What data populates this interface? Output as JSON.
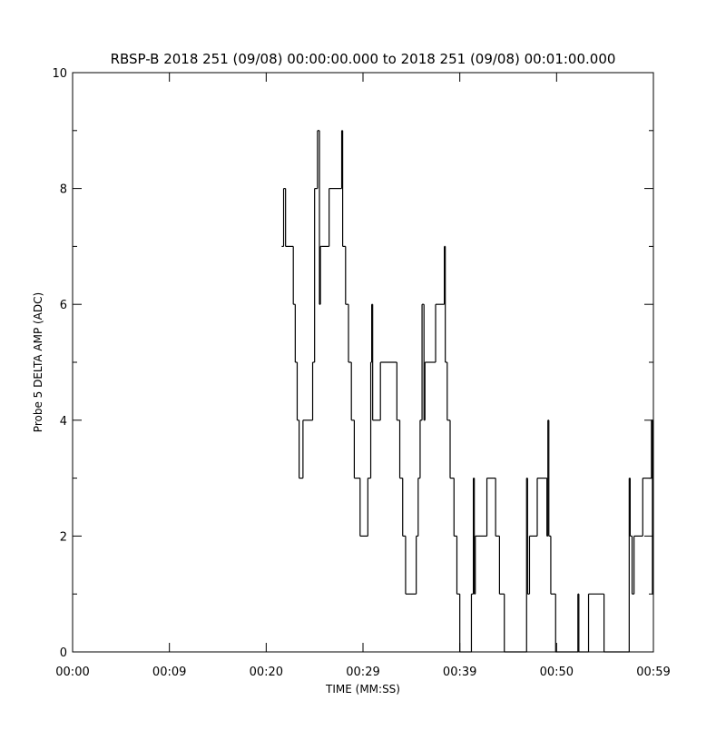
{
  "chart_data": {
    "type": "line",
    "title": "RBSP-B 2018 251 (09/08) 00:00:00.000 to 2018 251 (09/08) 00:01:00.000",
    "x_label": "TIME (MM:SS)",
    "y_label": "Probe 5 DELTA AMP (ADC)",
    "drawstyle": "steps-post",
    "xlim": [
      0,
      60
    ],
    "xticks": [
      {
        "value": 0,
        "label": "00:00"
      },
      {
        "value": 10,
        "label": "00:09"
      },
      {
        "value": 20,
        "label": "00:20"
      },
      {
        "value": 30,
        "label": "00:29"
      },
      {
        "value": 40,
        "label": "00:39"
      },
      {
        "value": 50,
        "label": "00:50"
      },
      {
        "value": 60,
        "label": "00:59"
      }
    ],
    "ylim": [
      0,
      10
    ],
    "yticks": [
      0,
      2,
      4,
      6,
      8,
      10
    ],
    "series": [
      {
        "color": "#000000",
        "x": [
          21.6,
          21.8,
          22.0,
          22.8,
          23.0,
          23.2,
          23.4,
          23.8,
          24.8,
          25.0,
          25.3,
          25.5,
          25.6,
          25.7,
          26.5,
          27.8,
          27.9,
          28.2,
          28.5,
          28.8,
          29.1,
          29.7,
          30.5,
          30.8,
          30.9,
          31.0,
          31.8,
          33.5,
          33.8,
          34.1,
          34.4,
          35.5,
          35.7,
          35.9,
          36.1,
          36.3,
          36.4,
          37.5,
          38.4,
          38.5,
          38.7,
          39.0,
          39.4,
          39.7,
          40.0,
          41.2,
          41.4,
          41.5,
          41.6,
          42.8,
          43.7,
          44.1,
          44.6,
          46.9,
          47.0,
          47.2,
          48.0,
          49.0,
          49.1,
          49.2,
          49.4,
          49.9,
          52.2,
          52.3,
          53.3,
          54.9,
          57.5,
          57.6,
          57.8,
          58.0,
          58.9,
          59.8,
          59.9
        ],
        "values": [
          7,
          8,
          7,
          6,
          5,
          4,
          3,
          4,
          5,
          8,
          9,
          6,
          7,
          7,
          8,
          9,
          7,
          6,
          5,
          4,
          3,
          2,
          3,
          5,
          6,
          4,
          5,
          4,
          3,
          2,
          1,
          2,
          3,
          4,
          6,
          4,
          5,
          6,
          7,
          5,
          4,
          3,
          2,
          1,
          0,
          1,
          3,
          1,
          2,
          3,
          2,
          1,
          0,
          3,
          1,
          2,
          3,
          2,
          4,
          2,
          1,
          0,
          1,
          0,
          1,
          0,
          3,
          2,
          1,
          2,
          3,
          4,
          1
        ]
      }
    ]
  }
}
